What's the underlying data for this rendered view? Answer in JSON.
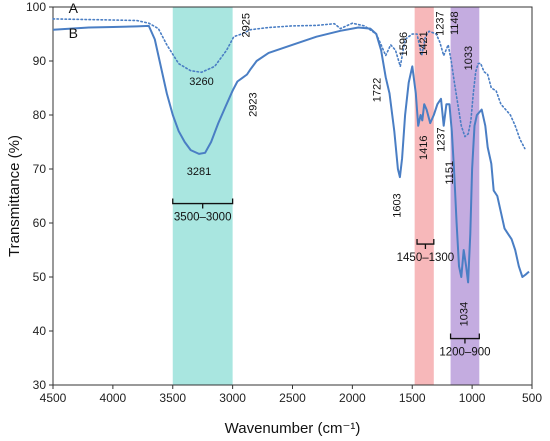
{
  "chart_data": {
    "type": "line",
    "title": "",
    "xlabel": "Wavenumber (cm⁻¹)",
    "ylabel": "Transmittance (%)",
    "xlim": [
      4500,
      500
    ],
    "x_reversed": true,
    "ylim": [
      30,
      100
    ],
    "x_ticks": [
      4500,
      4000,
      3500,
      3000,
      2500,
      2000,
      1500,
      1000,
      500
    ],
    "y_ticks": [
      30,
      40,
      50,
      60,
      70,
      80,
      90,
      100
    ],
    "grid": false,
    "colors": {
      "line": "#4a7ec4",
      "teal": "#a9e6e0",
      "pink": "#f7b8ba",
      "purple": "#c4ace0"
    },
    "bands": [
      {
        "from": 3500,
        "to": 3000,
        "color": "teal",
        "label": "3500–3000"
      },
      {
        "from": 1480,
        "to": 1320,
        "color": "pink",
        "label": "1450–1300"
      },
      {
        "from": 1180,
        "to": 940,
        "color": "purple",
        "label": "1200–900"
      }
    ],
    "series": [
      {
        "name": "A",
        "style": "dotted",
        "points": [
          [
            4500,
            97.8
          ],
          [
            4000,
            97.6
          ],
          [
            3800,
            97.5
          ],
          [
            3700,
            97
          ],
          [
            3620,
            96
          ],
          [
            3550,
            93
          ],
          [
            3450,
            89.5
          ],
          [
            3350,
            88.2
          ],
          [
            3260,
            87.9
          ],
          [
            3150,
            89
          ],
          [
            3050,
            92
          ],
          [
            2990,
            94.5
          ],
          [
            2925,
            95
          ],
          [
            2850,
            95.8
          ],
          [
            2700,
            96.2
          ],
          [
            2500,
            96.5
          ],
          [
            2300,
            96.6
          ],
          [
            2150,
            96.9
          ],
          [
            2100,
            96
          ],
          [
            2000,
            97
          ],
          [
            1900,
            96.5
          ],
          [
            1800,
            95
          ],
          [
            1760,
            93
          ],
          [
            1722,
            91
          ],
          [
            1680,
            93
          ],
          [
            1640,
            92
          ],
          [
            1600,
            89
          ],
          [
            1560,
            94
          ],
          [
            1500,
            95
          ],
          [
            1460,
            95
          ],
          [
            1421,
            91
          ],
          [
            1390,
            94.5
          ],
          [
            1360,
            95.5
          ],
          [
            1300,
            95
          ],
          [
            1270,
            93.5
          ],
          [
            1237,
            91
          ],
          [
            1200,
            93
          ],
          [
            1175,
            90
          ],
          [
            1148,
            86
          ],
          [
            1120,
            82
          ],
          [
            1090,
            78
          ],
          [
            1060,
            76
          ],
          [
            1033,
            76.5
          ],
          [
            1010,
            79
          ],
          [
            990,
            84
          ],
          [
            970,
            88
          ],
          [
            950,
            89.5
          ],
          [
            930,
            89.6
          ],
          [
            900,
            88
          ],
          [
            870,
            87.5
          ],
          [
            840,
            85
          ],
          [
            800,
            84.5
          ],
          [
            760,
            82
          ],
          [
            720,
            81
          ],
          [
            680,
            80
          ],
          [
            640,
            78
          ],
          [
            600,
            75.5
          ],
          [
            560,
            73.8
          ]
        ]
      },
      {
        "name": "B",
        "style": "solid",
        "points": [
          [
            4500,
            95.8
          ],
          [
            4200,
            96.2
          ],
          [
            4000,
            96.3
          ],
          [
            3800,
            96.4
          ],
          [
            3700,
            96.5
          ],
          [
            3650,
            94
          ],
          [
            3600,
            89
          ],
          [
            3550,
            84
          ],
          [
            3500,
            80
          ],
          [
            3450,
            77
          ],
          [
            3400,
            75
          ],
          [
            3350,
            73.5
          ],
          [
            3281,
            72.8
          ],
          [
            3230,
            73
          ],
          [
            3180,
            75
          ],
          [
            3120,
            78.5
          ],
          [
            3060,
            81.5
          ],
          [
            3000,
            84.5
          ],
          [
            2960,
            86.2
          ],
          [
            2923,
            86.8
          ],
          [
            2880,
            87.5
          ],
          [
            2850,
            88.5
          ],
          [
            2800,
            90
          ],
          [
            2700,
            91.5
          ],
          [
            2500,
            93
          ],
          [
            2300,
            94.5
          ],
          [
            2100,
            95.6
          ],
          [
            1950,
            96.2
          ],
          [
            1850,
            96
          ],
          [
            1800,
            95
          ],
          [
            1760,
            92
          ],
          [
            1722,
            87
          ],
          [
            1690,
            84
          ],
          [
            1650,
            77
          ],
          [
            1620,
            70
          ],
          [
            1603,
            68.5
          ],
          [
            1585,
            72
          ],
          [
            1560,
            80
          ],
          [
            1530,
            86
          ],
          [
            1500,
            89
          ],
          [
            1470,
            84
          ],
          [
            1450,
            78
          ],
          [
            1430,
            80
          ],
          [
            1416,
            79
          ],
          [
            1400,
            82
          ],
          [
            1380,
            81
          ],
          [
            1350,
            78.5
          ],
          [
            1320,
            80
          ],
          [
            1290,
            82
          ],
          [
            1260,
            83
          ],
          [
            1237,
            78
          ],
          [
            1215,
            82
          ],
          [
            1190,
            82
          ],
          [
            1170,
            77
          ],
          [
            1151,
            70
          ],
          [
            1130,
            60
          ],
          [
            1110,
            52
          ],
          [
            1090,
            50
          ],
          [
            1070,
            55
          ],
          [
            1050,
            52
          ],
          [
            1034,
            49
          ],
          [
            1015,
            58
          ],
          [
            1000,
            70
          ],
          [
            980,
            78
          ],
          [
            960,
            80
          ],
          [
            940,
            80.5
          ],
          [
            920,
            81
          ],
          [
            890,
            78
          ],
          [
            870,
            74
          ],
          [
            840,
            71
          ],
          [
            820,
            66
          ],
          [
            790,
            65
          ],
          [
            760,
            62
          ],
          [
            730,
            59
          ],
          [
            700,
            58
          ],
          [
            670,
            57
          ],
          [
            640,
            55
          ],
          [
            610,
            52
          ],
          [
            580,
            50
          ],
          [
            550,
            50.5
          ],
          [
            525,
            51
          ]
        ]
      }
    ],
    "series_labels": [
      {
        "name": "A",
        "x": 4330,
        "y": 98.9
      },
      {
        "name": "B",
        "x": 4330,
        "y": 94.3
      }
    ],
    "annotations": [
      {
        "text": "3260",
        "x": 3260,
        "y": 85.6,
        "rotate": false
      },
      {
        "text": "3281",
        "x": 3281,
        "y": 68.9,
        "rotate": false
      },
      {
        "text": "2925",
        "x": 2860,
        "y": 98.9,
        "rotate": true
      },
      {
        "text": "2923",
        "x": 2800,
        "y": 84.2,
        "rotate": true
      },
      {
        "text": "1722",
        "x": 1765,
        "y": 86.9,
        "rotate": true
      },
      {
        "text": "1596",
        "x": 1545,
        "y": 95.4,
        "rotate": true
      },
      {
        "text": "1603",
        "x": 1600,
        "y": 65.5,
        "rotate": true
      },
      {
        "text": "1421",
        "x": 1378,
        "y": 95.5,
        "rotate": true
      },
      {
        "text": "1416",
        "x": 1378,
        "y": 76.2,
        "rotate": true
      },
      {
        "text": "1237",
        "x": 1238,
        "y": 99.2,
        "rotate": true
      },
      {
        "text": "1148",
        "x": 1116,
        "y": 99.2,
        "rotate": true
      },
      {
        "text": "1237",
        "x": 1230,
        "y": 77.7,
        "rotate": true
      },
      {
        "text": "1151",
        "x": 1160,
        "y": 71.5,
        "rotate": true
      },
      {
        "text": "1033",
        "x": 1000,
        "y": 92.8,
        "rotate": true
      },
      {
        "text": "1034",
        "x": 1038,
        "y": 45.4,
        "rotate": true
      }
    ],
    "range_labels": [
      {
        "text": "3500–3000",
        "from": 3500,
        "to": 3000,
        "y": 63.6
      },
      {
        "text": "1450–1300",
        "from": 1460,
        "to": 1320,
        "y": 56.1
      },
      {
        "text": "1200–900",
        "from": 1180,
        "to": 940,
        "y": 38.6
      }
    ]
  }
}
